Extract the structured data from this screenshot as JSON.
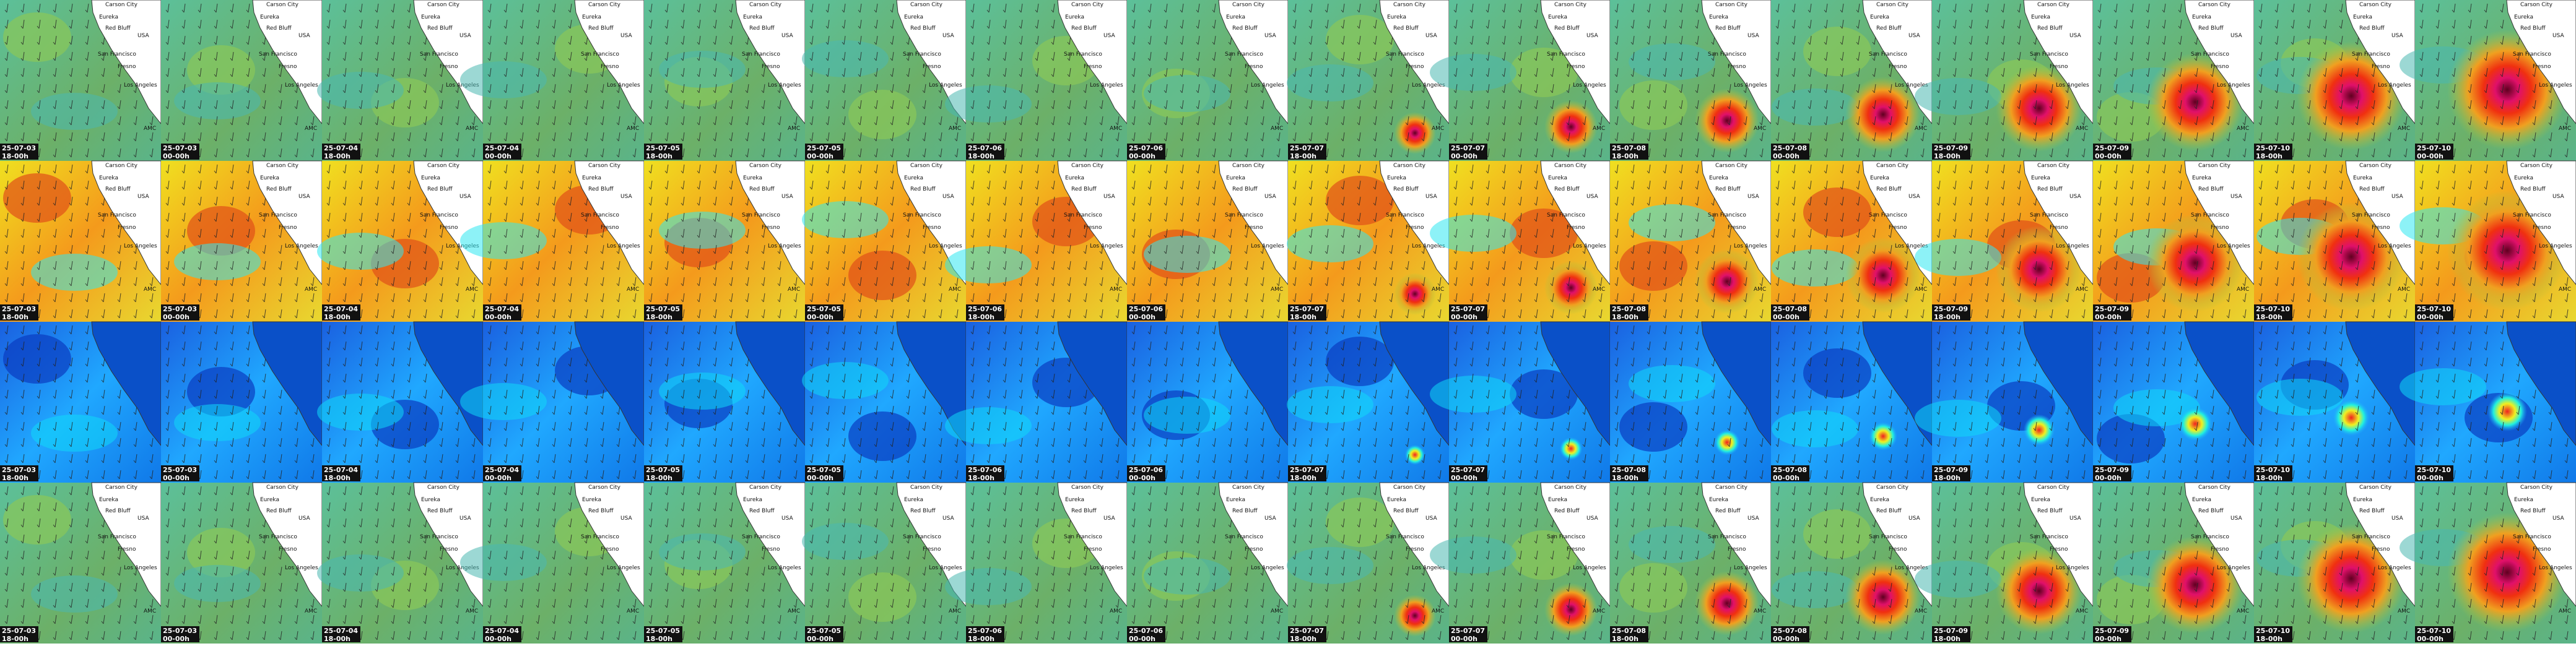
{
  "columns": [
    {
      "date": "25-07-03",
      "time": "18-00h"
    },
    {
      "date": "25-07-03",
      "time": "00-00h"
    },
    {
      "date": "25-07-04",
      "time": "18-00h"
    },
    {
      "date": "25-07-04",
      "time": "00-00h"
    },
    {
      "date": "25-07-05",
      "time": "18-00h"
    },
    {
      "date": "25-07-05",
      "time": "00-00h"
    },
    {
      "date": "25-07-06",
      "time": "18-00h"
    },
    {
      "date": "25-07-06",
      "time": "00-00h"
    },
    {
      "date": "25-07-07",
      "time": "18-00h"
    },
    {
      "date": "25-07-07",
      "time": "00-00h"
    },
    {
      "date": "25-07-08",
      "time": "18-00h"
    },
    {
      "date": "25-07-08",
      "time": "00-00h"
    },
    {
      "date": "25-07-09",
      "time": "18-00h"
    },
    {
      "date": "25-07-09",
      "time": "00-00h"
    },
    {
      "date": "25-07-10",
      "time": "18-00h"
    },
    {
      "date": "25-07-10",
      "time": "00-00h"
    }
  ],
  "places": [
    "Carson City",
    "Eureka",
    "Red Bluff",
    "San Francisco",
    "Fresno",
    "Los Angeles",
    "USA",
    "AMC"
  ]
}
